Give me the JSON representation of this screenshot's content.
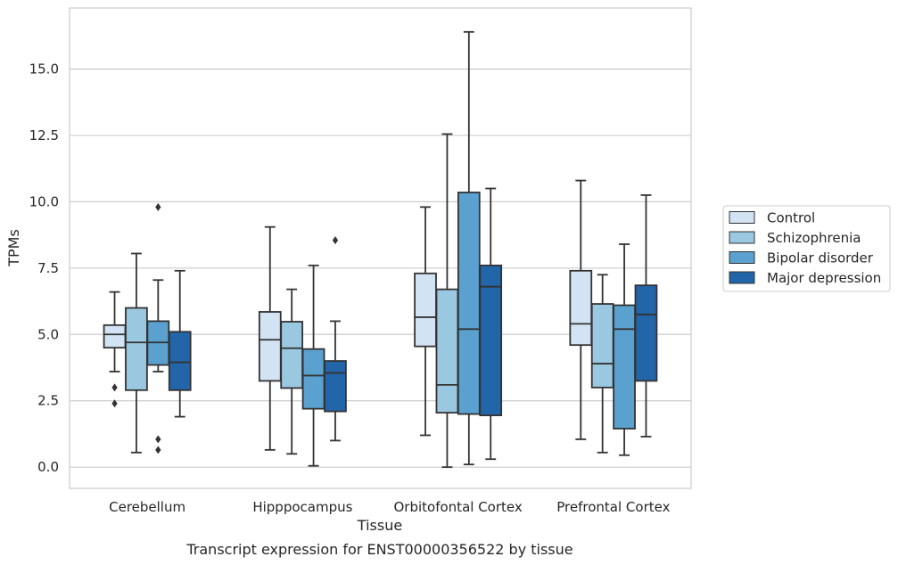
{
  "chart_data": {
    "type": "box",
    "xlabel": "Tissue",
    "ylabel": "TPMs",
    "caption": "Transcript expression for ENST00000356522 by tissue",
    "categories": [
      "Cerebellum",
      "Hipppocampus",
      "Orbitofontal Cortex",
      "Prefrontal Cortex"
    ],
    "ylim": [
      -0.8,
      17.3
    ],
    "yticks": [
      0.0,
      2.5,
      5.0,
      7.5,
      10.0,
      12.5,
      15.0
    ],
    "ytick_labels": [
      "0.0",
      "2.5",
      "5.0",
      "7.5",
      "10.0",
      "12.5",
      "15.0"
    ],
    "grid": "horizontal",
    "legend_position": "right",
    "series": [
      {
        "name": "Control",
        "color": "#d2e3f3",
        "boxes": [
          {
            "whislo": 3.6,
            "q1": 4.5,
            "med": 5.0,
            "q3": 5.35,
            "whishi": 6.6,
            "fliers": [
              3.0,
              2.4
            ]
          },
          {
            "whislo": 0.65,
            "q1": 3.25,
            "med": 4.8,
            "q3": 5.85,
            "whishi": 9.05,
            "fliers": []
          },
          {
            "whislo": 1.2,
            "q1": 4.55,
            "med": 5.65,
            "q3": 7.3,
            "whishi": 9.8,
            "fliers": []
          },
          {
            "whislo": 1.05,
            "q1": 4.6,
            "med": 5.4,
            "q3": 7.4,
            "whishi": 10.8,
            "fliers": []
          }
        ]
      },
      {
        "name": "Schizophrenia",
        "color": "#9ac8e0",
        "boxes": [
          {
            "whislo": 0.55,
            "q1": 2.9,
            "med": 4.7,
            "q3": 6.0,
            "whishi": 8.05,
            "fliers": []
          },
          {
            "whislo": 0.5,
            "q1": 2.98,
            "med": 4.48,
            "q3": 5.48,
            "whishi": 6.7,
            "fliers": []
          },
          {
            "whislo": 0.0,
            "q1": 2.05,
            "med": 3.1,
            "q3": 6.7,
            "whishi": 12.55,
            "fliers": []
          },
          {
            "whislo": 0.55,
            "q1": 3.0,
            "med": 3.9,
            "q3": 6.15,
            "whishi": 7.25,
            "fliers": []
          }
        ]
      },
      {
        "name": "Bipolar disorder",
        "color": "#5aa1cf",
        "boxes": [
          {
            "whislo": 3.6,
            "q1": 3.85,
            "med": 4.7,
            "q3": 5.5,
            "whishi": 7.05,
            "fliers": [
              9.8,
              1.05,
              0.65
            ]
          },
          {
            "whislo": 0.05,
            "q1": 2.2,
            "med": 3.45,
            "q3": 4.45,
            "whishi": 7.6,
            "fliers": []
          },
          {
            "whislo": 0.1,
            "q1": 2.0,
            "med": 5.2,
            "q3": 10.35,
            "whishi": 16.4,
            "fliers": []
          },
          {
            "whislo": 0.45,
            "q1": 1.45,
            "med": 5.2,
            "q3": 6.1,
            "whishi": 8.4,
            "fliers": []
          }
        ]
      },
      {
        "name": "Major depression",
        "color": "#2265a8",
        "boxes": [
          {
            "whislo": 1.9,
            "q1": 2.9,
            "med": 3.95,
            "q3": 5.1,
            "whishi": 7.4,
            "fliers": []
          },
          {
            "whislo": 1.0,
            "q1": 2.1,
            "med": 3.55,
            "q3": 4.0,
            "whishi": 5.5,
            "fliers": [
              8.55
            ]
          },
          {
            "whislo": 0.3,
            "q1": 1.95,
            "med": 6.8,
            "q3": 7.6,
            "whishi": 10.5,
            "fliers": []
          },
          {
            "whislo": 1.15,
            "q1": 3.25,
            "med": 5.75,
            "q3": 6.85,
            "whishi": 10.25,
            "fliers": []
          }
        ]
      }
    ]
  }
}
